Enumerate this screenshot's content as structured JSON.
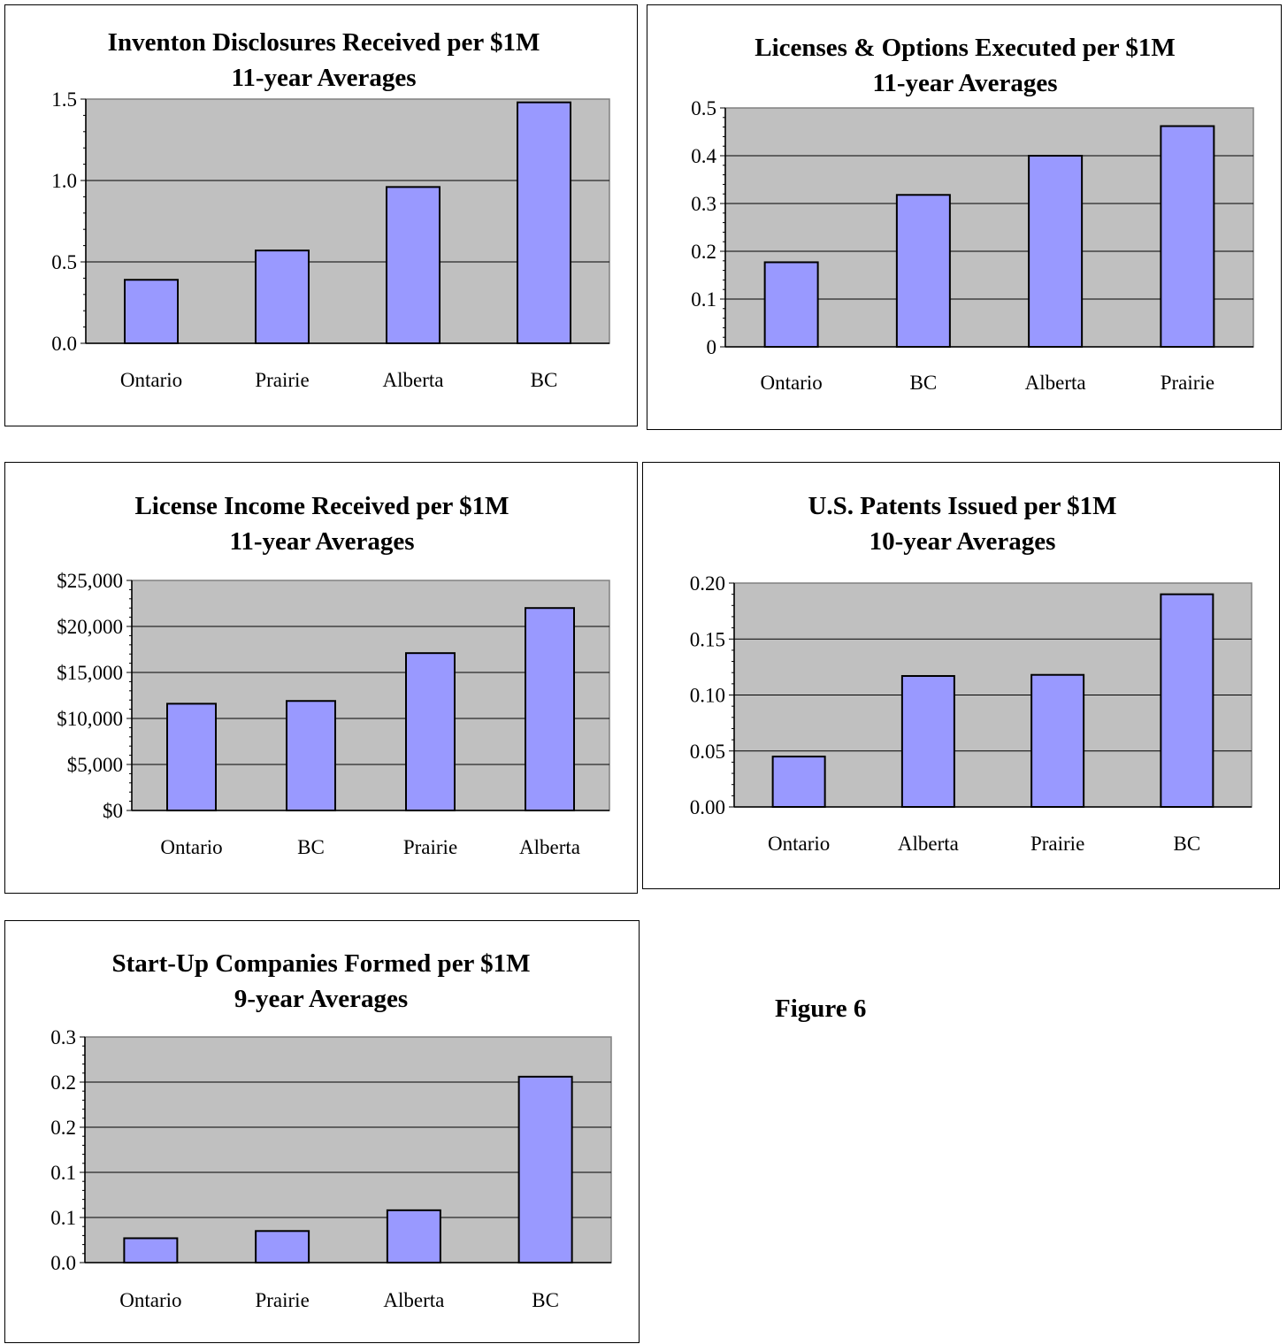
{
  "figure_label": "Figure 6",
  "colors": {
    "plot_bg": "#c0c0c0",
    "bar_fill": "#9999ff",
    "bar_stroke": "#000000",
    "grid": "#000000"
  },
  "chart_data": [
    {
      "type": "bar",
      "title": [
        "Inventon Disclosures Received per $1M",
        "11-year Averages"
      ],
      "categories": [
        "Ontario",
        "Prairie",
        "Alberta",
        "BC"
      ],
      "values": [
        0.39,
        0.57,
        0.96,
        1.48
      ],
      "ylim": [
        0,
        1.5
      ],
      "yticks": [
        0,
        0.5,
        1.0,
        1.5
      ],
      "ytick_labels": [
        "0.0",
        "0.5",
        "1.0",
        "1.5"
      ],
      "grid": true,
      "legend": "none"
    },
    {
      "type": "bar",
      "title": [
        "Licenses & Options Executed per $1M",
        "11-year Averages"
      ],
      "categories": [
        "Ontario",
        "BC",
        "Alberta",
        "Prairie"
      ],
      "values": [
        0.177,
        0.318,
        0.4,
        0.462
      ],
      "ylim": [
        0,
        0.5
      ],
      "yticks": [
        0,
        0.1,
        0.2,
        0.3,
        0.4,
        0.5
      ],
      "ytick_labels": [
        "0",
        "0.1",
        "0.2",
        "0.3",
        "0.4",
        "0.5"
      ],
      "grid": true,
      "legend": "none"
    },
    {
      "type": "bar",
      "title": [
        "License Income Received per $1M",
        "11-year Averages"
      ],
      "categories": [
        "Ontario",
        "BC",
        "Prairie",
        "Alberta"
      ],
      "values": [
        11600,
        11900,
        17100,
        22000
      ],
      "ylim": [
        0,
        25000
      ],
      "yticks": [
        0,
        5000,
        10000,
        15000,
        20000,
        25000
      ],
      "ytick_labels": [
        "$0",
        "$5,000",
        "$10,000",
        "$15,000",
        "$20,000",
        "$25,000"
      ],
      "grid": true,
      "legend": "none"
    },
    {
      "type": "bar",
      "title": [
        "U.S. Patents Issued per $1M",
        "10-year Averages"
      ],
      "categories": [
        "Ontario",
        "Alberta",
        "Prairie",
        "BC"
      ],
      "values": [
        0.045,
        0.117,
        0.118,
        0.19
      ],
      "ylim": [
        0,
        0.2
      ],
      "yticks": [
        0,
        0.05,
        0.1,
        0.15,
        0.2
      ],
      "ytick_labels": [
        "0.00",
        "0.05",
        "0.10",
        "0.15",
        "0.20"
      ],
      "grid": true,
      "legend": "none"
    },
    {
      "type": "bar",
      "title": [
        "Start-Up Companies Formed per $1M",
        "9-year Averages"
      ],
      "categories": [
        "Ontario",
        "Prairie",
        "Alberta",
        "BC"
      ],
      "values": [
        0.027,
        0.035,
        0.058,
        0.206
      ],
      "ylim": [
        0,
        0.25
      ],
      "yticks": [
        0,
        0.05,
        0.1,
        0.15,
        0.2,
        0.25
      ],
      "ytick_labels": [
        "0.0",
        "0.1",
        "0.1",
        "0.2",
        "0.2",
        "0.3"
      ],
      "grid": true,
      "legend": "none"
    }
  ]
}
